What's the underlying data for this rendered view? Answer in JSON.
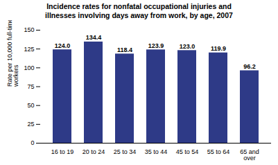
{
  "chart_data": {
    "type": "bar",
    "title": "Incidence rates for nonfatal occupational injuries and\nillnesses involving days away from work, by age, 2007",
    "categories": [
      "16 to 19",
      "20 to 24",
      "25 to 34",
      "35 to 44",
      "45 to 54",
      "55 to 64",
      "65 and\nover"
    ],
    "values": [
      124.0,
      134.4,
      118.4,
      123.9,
      123.0,
      119.9,
      96.2
    ],
    "value_labels": [
      "124.0",
      "134.4",
      "118.4",
      "123.9",
      "123.0",
      "119.9",
      "96.2"
    ],
    "data_labels": true,
    "color": "#2E3A87",
    "ylabel": "Rate per 10,000 full-time\nworkers",
    "ylim": [
      0,
      150
    ],
    "yticks": [
      0,
      25,
      50,
      75,
      100,
      125,
      150
    ],
    "grid": false
  }
}
